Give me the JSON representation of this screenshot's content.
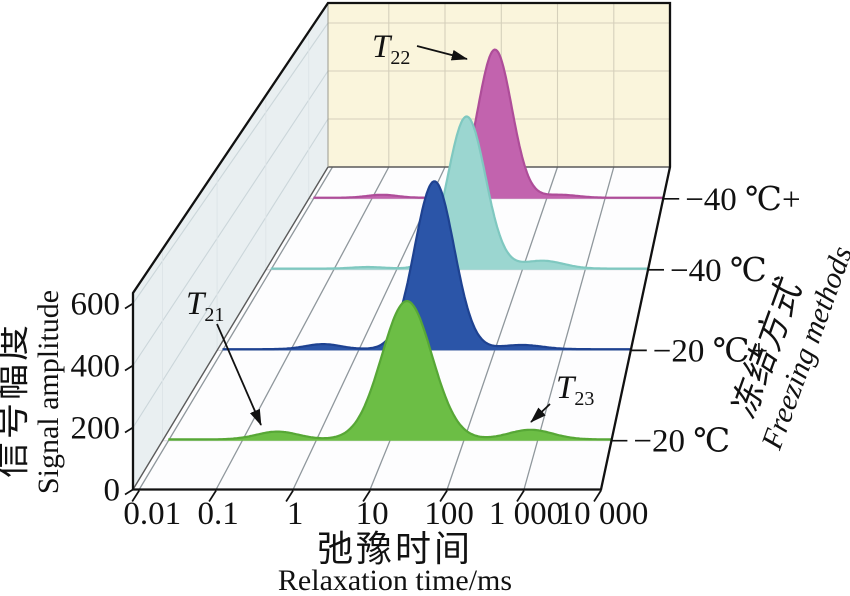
{
  "figure": {
    "x_axis": {
      "title_zh": "弛豫时间",
      "title_en": "Relaxation time/ms",
      "tick_labels": [
        "0.01",
        "0.1",
        "1",
        "10",
        "100",
        "1 000",
        "10 000"
      ]
    },
    "y_axis": {
      "title_zh": "信号幅度",
      "title_en": "Signal amplitude",
      "tick_labels": [
        "0",
        "200",
        "400",
        "600"
      ],
      "tick_values": [
        0,
        200,
        400,
        600
      ]
    },
    "z_axis": {
      "title_zh": "冻结方式",
      "title_en": "Freezing methods",
      "tick_labels": [
        "−20 ℃",
        "−20 ℃+",
        "−40 ℃",
        "−40 ℃+"
      ]
    },
    "annotations": [
      {
        "id": "T21",
        "base": "T",
        "sub": "21"
      },
      {
        "id": "T22",
        "base": "T",
        "sub": "22"
      },
      {
        "id": "T23",
        "base": "T",
        "sub": "23"
      }
    ]
  },
  "chart_data": {
    "type": "area",
    "projection": "3d-waterfall",
    "x_scale": "log",
    "x_range_ms": [
      0.01,
      10000
    ],
    "xlabel": "Relaxation time/ms",
    "ylabel": "Signal amplitude",
    "y_range": [
      0,
      600
    ],
    "zlabel": "Freezing methods",
    "baseline_value": 4.5,
    "series": [
      {
        "name": "−20 ℃",
        "depth_index": 0,
        "color": "#6CBE45",
        "stroke": "#57A736",
        "peaks": [
          {
            "label": "T21",
            "center_ms": 0.3,
            "sigma_log10": 0.28,
            "amplitude": 26
          },
          {
            "label": "T22",
            "center_ms": 17,
            "sigma_log10": 0.34,
            "amplitude": 462
          },
          {
            "label": "T23",
            "center_ms": 800,
            "sigma_log10": 0.3,
            "amplitude": 32
          }
        ]
      },
      {
        "name": "−20 ℃+",
        "depth_index": 1,
        "color": "#2B55A8",
        "stroke": "#1E4291",
        "peaks": [
          {
            "label": "T21",
            "center_ms": 0.3,
            "sigma_log10": 0.26,
            "amplitude": 18
          },
          {
            "label": "T22",
            "center_ms": 13,
            "sigma_log10": 0.29,
            "amplitude": 600
          },
          {
            "label": "T23",
            "center_ms": 250,
            "sigma_log10": 0.3,
            "amplitude": 15
          }
        ]
      },
      {
        "name": "−40 ℃",
        "depth_index": 2,
        "color": "#9BD6D0",
        "stroke": "#7FC8C0",
        "peaks": [
          {
            "label": "T21",
            "center_ms": 0.35,
            "sigma_log10": 0.26,
            "amplitude": 6
          },
          {
            "label": "T22",
            "center_ms": 13,
            "sigma_log10": 0.3,
            "amplitude": 580
          },
          {
            "label": "T23",
            "center_ms": 210,
            "sigma_log10": 0.33,
            "amplitude": 30
          }
        ]
      },
      {
        "name": "−40 ℃+",
        "depth_index": 3,
        "color": "#C263AE",
        "stroke": "#AE4D99",
        "peaks": [
          {
            "label": "T21",
            "center_ms": 0.15,
            "sigma_log10": 0.26,
            "amplitude": 12
          },
          {
            "label": "T22",
            "center_ms": 13,
            "sigma_log10": 0.29,
            "amplitude": 600
          },
          {
            "label": "T23",
            "center_ms": 170,
            "sigma_log10": 0.3,
            "amplitude": 12
          }
        ]
      }
    ]
  },
  "palette": {
    "background": "#FFFFFF",
    "left_wall": "#E9EFF1",
    "back_wall": "#FAF5DC",
    "floor": "#FDFDFE",
    "edge": "#111111",
    "edge_secondary": "#5A5A5A",
    "grid_floor": "#8F979C",
    "grid_floor_depth": "#D9DADF",
    "grid_left_wall": "#CBD6DA",
    "grid_left_wall_vertical": "#DEE5E8",
    "grid_back_wall": "#D5D0BB",
    "text": "#111111"
  }
}
